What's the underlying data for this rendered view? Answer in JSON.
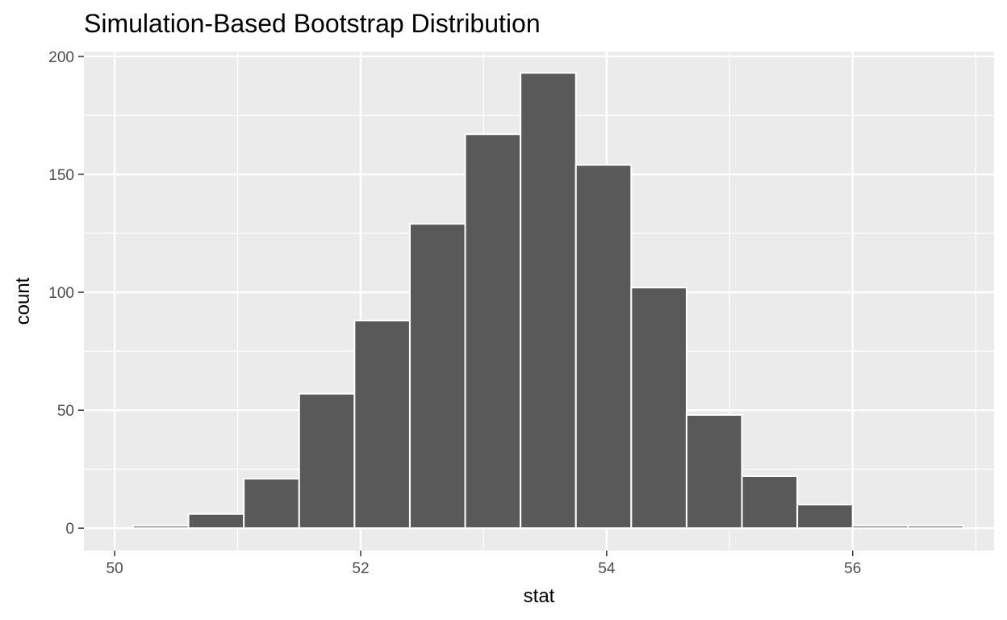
{
  "chart_data": {
    "type": "bar",
    "title": "Simulation-Based Bootstrap Distribution",
    "xlabel": "stat",
    "ylabel": "count",
    "xlim": [
      49.75,
      57.15
    ],
    "ylim": [
      -9.5,
      202
    ],
    "xticks": [
      "50",
      "52",
      "54",
      "56"
    ],
    "yticks": [
      "0",
      "50",
      "100",
      "150",
      "200"
    ],
    "grid": true,
    "bins": [
      {
        "x0": 50.15,
        "x1": 50.6,
        "count": 1
      },
      {
        "x0": 50.6,
        "x1": 51.05,
        "count": 6
      },
      {
        "x0": 51.05,
        "x1": 51.5,
        "count": 21
      },
      {
        "x0": 51.5,
        "x1": 51.95,
        "count": 57
      },
      {
        "x0": 51.95,
        "x1": 52.4,
        "count": 88
      },
      {
        "x0": 52.4,
        "x1": 52.85,
        "count": 129
      },
      {
        "x0": 52.85,
        "x1": 53.3,
        "count": 167
      },
      {
        "x0": 53.3,
        "x1": 53.75,
        "count": 193
      },
      {
        "x0": 53.75,
        "x1": 54.2,
        "count": 154
      },
      {
        "x0": 54.2,
        "x1": 54.65,
        "count": 102
      },
      {
        "x0": 54.65,
        "x1": 55.1,
        "count": 48
      },
      {
        "x0": 55.1,
        "x1": 55.55,
        "count": 22
      },
      {
        "x0": 55.55,
        "x1": 56.0,
        "count": 10
      },
      {
        "x0": 56.0,
        "x1": 56.45,
        "count": 1
      },
      {
        "x0": 56.45,
        "x1": 56.9,
        "count": 1
      }
    ],
    "colors": {
      "panel": "#ebebeb",
      "grid": "#ffffff",
      "bar_fill": "#595959",
      "bar_outline": "#ffffff",
      "tick_text": "#4d4d4d",
      "tick_mark": "#333333"
    }
  }
}
